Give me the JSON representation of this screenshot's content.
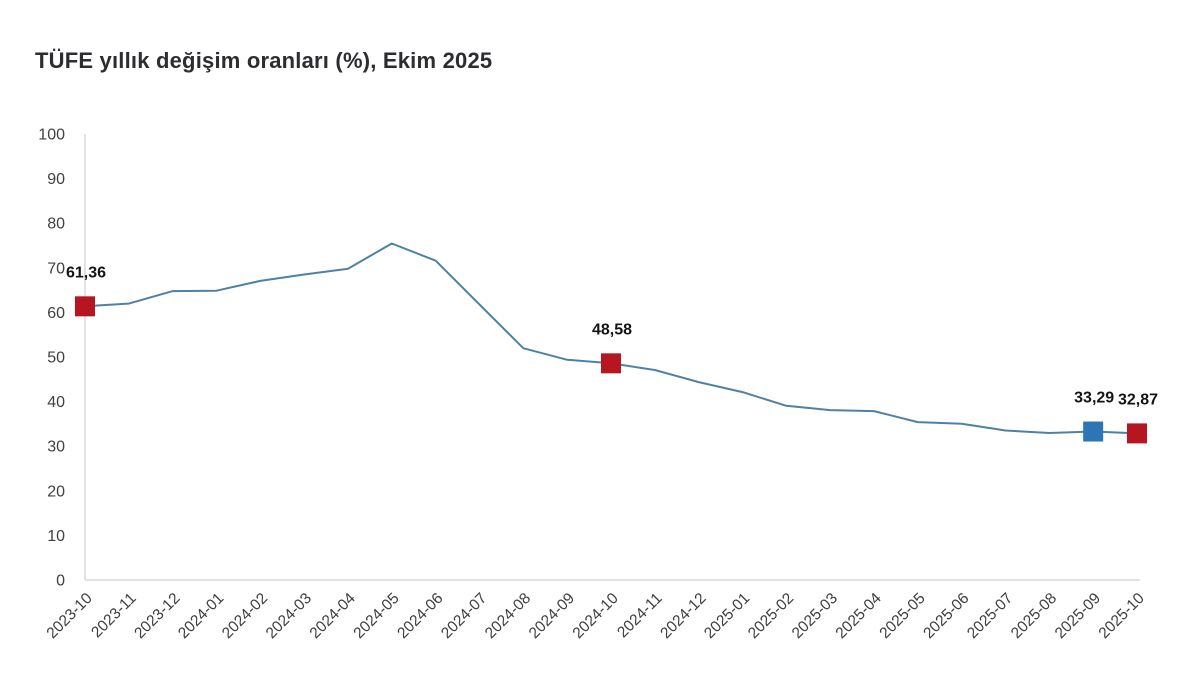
{
  "title": "TÜFE yıllık değişim oranları (%), Ekim 2025",
  "colors": {
    "line": "#4d82a6",
    "marker_red": "#b5161f",
    "marker_blue": "#2e75b6",
    "axis_line": "#d9d9d9",
    "tick_text": "#404040",
    "title_text": "#2b2d30",
    "background": "#ffffff"
  },
  "chart_data": {
    "type": "line",
    "title": "TÜFE yıllık değişim oranları (%), Ekim 2025",
    "xlabel": "",
    "ylabel": "",
    "ylim": [
      0,
      100
    ],
    "yticks": [
      0,
      10,
      20,
      30,
      40,
      50,
      60,
      70,
      80,
      90,
      100
    ],
    "grid": false,
    "legend": false,
    "categories": [
      "2023-10",
      "2023-11",
      "2023-12",
      "2024-01",
      "2024-02",
      "2024-03",
      "2024-04",
      "2024-05",
      "2024-06",
      "2024-07",
      "2024-08",
      "2024-09",
      "2024-10",
      "2024-11",
      "2024-12",
      "2025-01",
      "2025-02",
      "2025-03",
      "2025-04",
      "2025-05",
      "2025-06",
      "2025-07",
      "2025-08",
      "2025-09",
      "2025-10"
    ],
    "values": [
      61.36,
      61.98,
      64.77,
      64.86,
      67.07,
      68.5,
      69.8,
      75.45,
      71.6,
      61.78,
      51.97,
      49.38,
      48.58,
      47.09,
      44.38,
      42.12,
      39.05,
      38.1,
      37.86,
      35.41,
      35.05,
      33.52,
      32.95,
      33.29,
      32.87
    ],
    "annotated_points": [
      {
        "index": 0,
        "category": "2023-10",
        "value": 61.36,
        "label": "61,36",
        "marker": "red"
      },
      {
        "index": 12,
        "category": "2024-10",
        "value": 48.58,
        "label": "48,58",
        "marker": "red"
      },
      {
        "index": 23,
        "category": "2025-09",
        "value": 33.29,
        "label": "33,29",
        "marker": "blue"
      },
      {
        "index": 24,
        "category": "2025-10",
        "value": 32.87,
        "label": "32,87",
        "marker": "red"
      }
    ]
  }
}
